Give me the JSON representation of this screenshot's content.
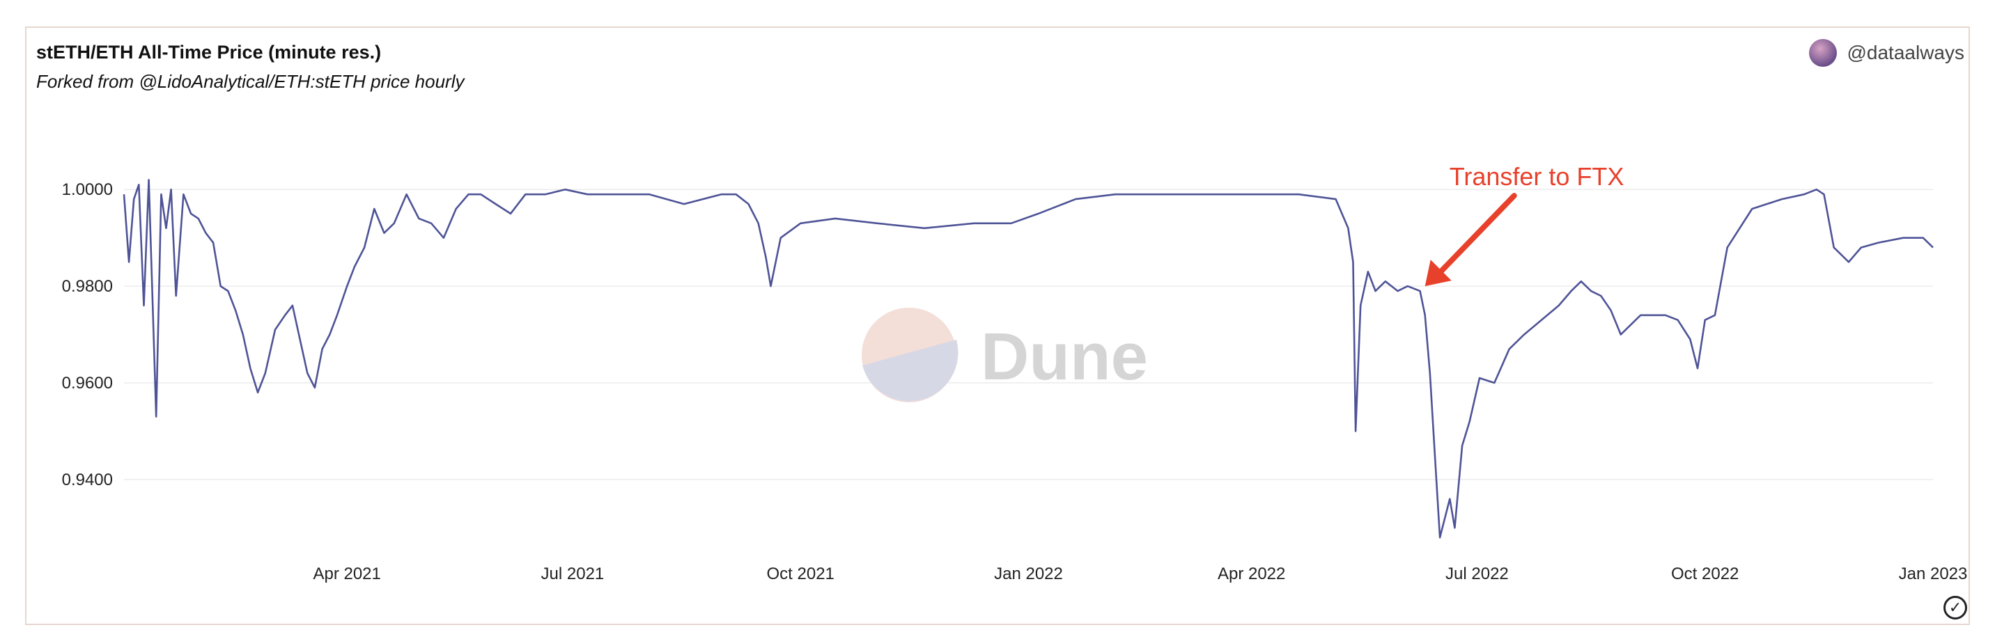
{
  "header": {
    "title": "stETH/ETH All-Time Price (minute res.)",
    "subtitle": "Forked from @LidoAnalytical/ETH:stETH price hourly",
    "username": "@dataalways",
    "avatar_icon": "avatar-icon",
    "status_icon": "check-circle-icon"
  },
  "watermark": "Dune",
  "colors": {
    "line": "#4e5396",
    "annotation": "#e8412b",
    "grid": "#ececec",
    "border": "#e6d7cf"
  },
  "chart_data": {
    "type": "line",
    "title": "stETH/ETH All-Time Price (minute res.)",
    "subtitle": "Forked from @LidoAnalytical/ETH:stETH price hourly",
    "xlabel": "",
    "ylabel": "",
    "grid": true,
    "legend": "none",
    "xlim": [
      "2021-01-01",
      "2023-01-01"
    ],
    "ylim": [
      0.924,
      1.014
    ],
    "y_ticks": [
      0.94,
      0.96,
      0.98,
      1.0
    ],
    "y_tick_labels": [
      "0.9400",
      "0.9600",
      "0.9800",
      "1.0000"
    ],
    "x_ticks": [
      "2021-04-01",
      "2021-07-01",
      "2021-10-01",
      "2022-01-01",
      "2022-04-01",
      "2022-07-01",
      "2022-10-01",
      "2023-01-01"
    ],
    "x_tick_labels": [
      "Apr 2021",
      "Jul 2021",
      "Oct 2021",
      "Jan 2022",
      "Apr 2022",
      "Jul 2022",
      "Oct 2022",
      "Jan 2023"
    ],
    "annotations": [
      {
        "text": "Transfer to FTX",
        "x": "2022-06-10",
        "y": 0.98
      }
    ],
    "series": [
      {
        "x": [
          "2021-01-01",
          "2021-01-03",
          "2021-01-05",
          "2021-01-07",
          "2021-01-09",
          "2021-01-11",
          "2021-01-14",
          "2021-01-16",
          "2021-01-18",
          "2021-01-20",
          "2021-01-22",
          "2021-01-25",
          "2021-01-28",
          "2021-01-31",
          "2021-02-03",
          "2021-02-06",
          "2021-02-09",
          "2021-02-12",
          "2021-02-15",
          "2021-02-18",
          "2021-02-21",
          "2021-02-24",
          "2021-02-27",
          "2021-03-03",
          "2021-03-07",
          "2021-03-10",
          "2021-03-13",
          "2021-03-16",
          "2021-03-19",
          "2021-03-22",
          "2021-03-25",
          "2021-03-28",
          "2021-04-01",
          "2021-04-04",
          "2021-04-08",
          "2021-04-12",
          "2021-04-16",
          "2021-04-20",
          "2021-04-25",
          "2021-04-30",
          "2021-05-05",
          "2021-05-10",
          "2021-05-15",
          "2021-05-20",
          "2021-05-25",
          "2021-05-31",
          "2021-06-06",
          "2021-06-12",
          "2021-06-20",
          "2021-06-28",
          "2021-07-07",
          "2021-07-18",
          "2021-08-01",
          "2021-08-15",
          "2021-08-30",
          "2021-09-05",
          "2021-09-10",
          "2021-09-14",
          "2021-09-17",
          "2021-09-19",
          "2021-09-23",
          "2021-10-01",
          "2021-10-15",
          "2021-11-01",
          "2021-11-20",
          "2021-12-10",
          "2021-12-25",
          "2022-01-05",
          "2022-01-20",
          "2022-02-05",
          "2022-02-25",
          "2022-03-15",
          "2022-04-01",
          "2022-04-20",
          "2022-05-05",
          "2022-05-10",
          "2022-05-12",
          "2022-05-13",
          "2022-05-15",
          "2022-05-18",
          "2022-05-21",
          "2022-05-25",
          "2022-05-30",
          "2022-06-03",
          "2022-06-08",
          "2022-06-10",
          "2022-06-12",
          "2022-06-14",
          "2022-06-16",
          "2022-06-18",
          "2022-06-20",
          "2022-06-22",
          "2022-06-25",
          "2022-06-28",
          "2022-07-02",
          "2022-07-08",
          "2022-07-14",
          "2022-07-20",
          "2022-07-27",
          "2022-08-03",
          "2022-08-08",
          "2022-08-12",
          "2022-08-16",
          "2022-08-20",
          "2022-08-24",
          "2022-08-28",
          "2022-09-01",
          "2022-09-05",
          "2022-09-10",
          "2022-09-15",
          "2022-09-20",
          "2022-09-25",
          "2022-09-28",
          "2022-10-01",
          "2022-10-05",
          "2022-10-10",
          "2022-10-20",
          "2022-11-01",
          "2022-11-10",
          "2022-11-15",
          "2022-11-18",
          "2022-11-22",
          "2022-11-28",
          "2022-12-03",
          "2022-12-10",
          "2022-12-20",
          "2022-12-28",
          "2023-01-01"
        ],
        "y": [
          0.999,
          0.985,
          0.998,
          1.001,
          0.976,
          1.002,
          0.953,
          0.999,
          0.992,
          1.0,
          0.978,
          0.999,
          0.995,
          0.994,
          0.991,
          0.989,
          0.98,
          0.979,
          0.975,
          0.97,
          0.963,
          0.958,
          0.962,
          0.971,
          0.974,
          0.976,
          0.969,
          0.962,
          0.959,
          0.967,
          0.97,
          0.974,
          0.98,
          0.984,
          0.988,
          0.996,
          0.991,
          0.993,
          0.999,
          0.994,
          0.993,
          0.99,
          0.996,
          0.999,
          0.999,
          0.997,
          0.995,
          0.999,
          0.999,
          1.0,
          0.999,
          0.999,
          0.999,
          0.997,
          0.999,
          0.999,
          0.997,
          0.993,
          0.986,
          0.98,
          0.99,
          0.993,
          0.994,
          0.993,
          0.992,
          0.993,
          0.993,
          0.995,
          0.998,
          0.999,
          0.999,
          0.999,
          0.999,
          0.999,
          0.998,
          0.992,
          0.985,
          0.95,
          0.976,
          0.983,
          0.979,
          0.981,
          0.979,
          0.98,
          0.979,
          0.974,
          0.962,
          0.945,
          0.928,
          0.932,
          0.936,
          0.93,
          0.947,
          0.952,
          0.961,
          0.96,
          0.967,
          0.97,
          0.973,
          0.976,
          0.979,
          0.981,
          0.979,
          0.978,
          0.975,
          0.97,
          0.972,
          0.974,
          0.974,
          0.974,
          0.973,
          0.969,
          0.963,
          0.973,
          0.974,
          0.988,
          0.996,
          0.998,
          0.999,
          1.0,
          0.999,
          0.988,
          0.985,
          0.988,
          0.989,
          0.99,
          0.99,
          0.988
        ]
      }
    ]
  }
}
